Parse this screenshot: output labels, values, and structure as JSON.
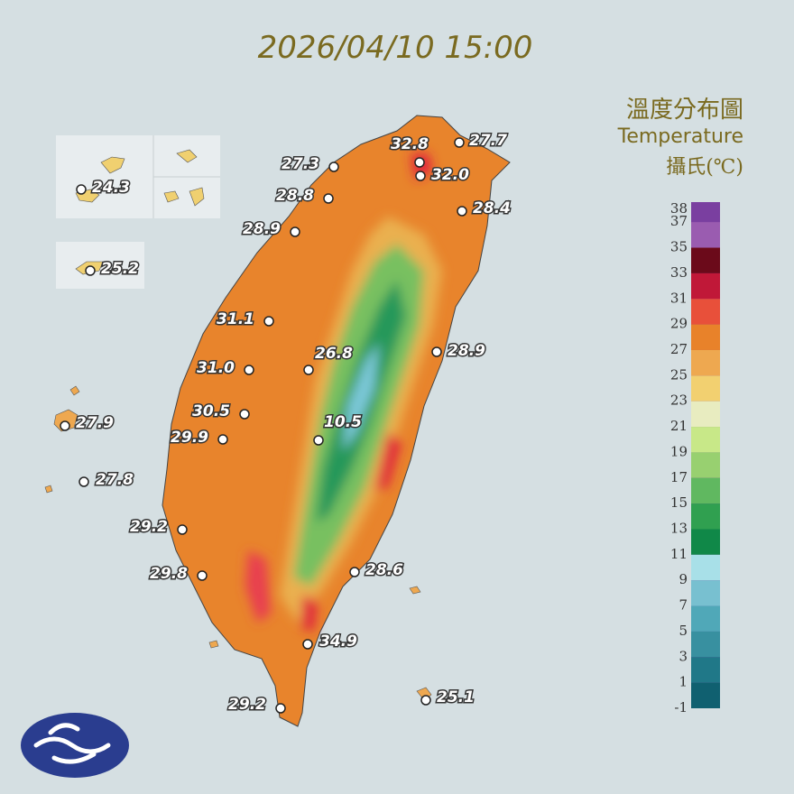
{
  "header": {
    "timestamp": "2026/04/10 15:00"
  },
  "legend": {
    "title": "溫度分布圖",
    "subtitle": "Temperature",
    "unit": "攝氏(℃)",
    "ticks": [
      38,
      37,
      35,
      33,
      31,
      29,
      27,
      25,
      23,
      21,
      19,
      17,
      15,
      13,
      11,
      9,
      7,
      5,
      3,
      1,
      -1
    ],
    "colors": [
      "#7a3fa0",
      "#9a5cb0",
      "#6b0a1a",
      "#c01838",
      "#e8503a",
      "#e8822a",
      "#eea850",
      "#f2d070",
      "#e8ecc0",
      "#c8e888",
      "#98d070",
      "#60b860",
      "#30a050",
      "#108848",
      "#a8e0e8",
      "#78c0d0",
      "#50a8b8",
      "#3890a0",
      "#207888",
      "#106070"
    ]
  },
  "stations": {
    "values": [
      27.3,
      28.8,
      28.9,
      32.8,
      27.7,
      32.0,
      28.4,
      31.1,
      26.8,
      28.9,
      31.0,
      30.5,
      29.9,
      10.5,
      27.8,
      27.9,
      24.3,
      25.2,
      29.2,
      29.8,
      28.6,
      34.9,
      29.2,
      25.1
    ],
    "value_labels": [
      "27.3",
      "28.8",
      "28.9",
      "32.8",
      "27.7",
      "32.0",
      "28.4",
      "31.1",
      "26.8",
      "28.9",
      "31.0",
      "30.5",
      "29.9",
      "10.5",
      "27.8",
      "27.9",
      "24.3",
      "25.2",
      "29.2",
      "29.8",
      "28.6",
      "34.9",
      "29.2",
      "25.1"
    ]
  }
}
